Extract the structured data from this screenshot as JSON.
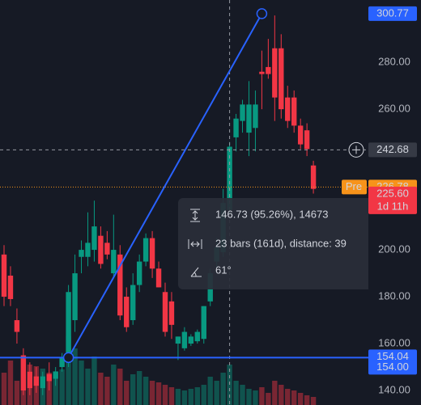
{
  "chart_data": {
    "type": "candlestick",
    "open": [
      198,
      189,
      170,
      155,
      148,
      146,
      141,
      147,
      145,
      150,
      154,
      170,
      197,
      197,
      200,
      206,
      203,
      190,
      198,
      180,
      170,
      185,
      195,
      205,
      192,
      182,
      178,
      160,
      158,
      160,
      161,
      162,
      178,
      195,
      199,
      217,
      248,
      255,
      250,
      252,
      276,
      278,
      286,
      286,
      265,
      265,
      253,
      251,
      236
    ],
    "high": [
      202,
      193,
      175,
      158,
      152,
      150,
      148,
      152,
      150,
      156,
      185,
      198,
      204,
      216,
      221,
      210,
      208,
      215,
      202,
      184,
      190,
      198,
      207,
      208,
      195,
      186,
      182,
      163,
      167,
      164,
      166,
      176,
      192,
      205,
      226,
      246,
      258,
      264,
      272,
      268,
      285,
      290,
      300,
      292,
      270,
      268,
      256,
      254,
      238
    ],
    "low": [
      176,
      176,
      160,
      138,
      138,
      139,
      138,
      140,
      142,
      148,
      150,
      165,
      190,
      193,
      195,
      192,
      196,
      188,
      170,
      165,
      168,
      182,
      193,
      188,
      184,
      163,
      162,
      153,
      157,
      159,
      160,
      160,
      176,
      192,
      197,
      215,
      242,
      250,
      240,
      242,
      260,
      273,
      255,
      256,
      252,
      250,
      243,
      240,
      224
    ],
    "close": [
      180,
      179,
      165,
      140,
      141,
      142,
      146,
      144,
      148,
      154,
      182,
      190,
      200,
      203,
      210,
      194,
      198,
      200,
      172,
      167,
      185,
      195,
      205,
      192,
      184,
      165,
      168,
      163,
      165,
      163,
      165,
      176,
      190,
      201,
      220,
      244,
      256,
      262,
      262,
      262,
      275,
      275,
      265,
      260,
      255,
      253,
      245,
      243,
      226
    ],
    "volume": [
      40,
      55,
      30,
      60,
      50,
      48,
      45,
      40,
      42,
      44,
      85,
      70,
      55,
      45,
      60,
      40,
      35,
      50,
      45,
      30,
      38,
      42,
      35,
      30,
      28,
      25,
      22,
      20,
      18,
      20,
      22,
      25,
      35,
      30,
      40,
      50,
      30,
      25,
      20,
      18,
      22,
      15,
      30,
      25,
      20,
      18,
      15,
      12,
      10
    ],
    "ylim": [
      133.8,
      306.6
    ],
    "yticks": [
      {
        "value": 140,
        "label": "140.00"
      },
      {
        "value": 160,
        "label": "160.00"
      },
      {
        "value": 180,
        "label": "180.00"
      },
      {
        "value": 200,
        "label": "200.00"
      },
      {
        "value": 260,
        "label": "260.00"
      },
      {
        "value": 280,
        "label": "280.00"
      }
    ],
    "up_color": "#089981",
    "down_color": "#f23645",
    "price_labels": [
      {
        "value": 300.77,
        "label": "300.77",
        "color": "#2962ff"
      },
      {
        "value": 242.68,
        "label": "242.68",
        "color": "#363a45"
      },
      {
        "value": 226.78,
        "label": "226.78",
        "color": "#f7931a",
        "tag": "Pre"
      },
      {
        "value": 225.6,
        "label": "225.60",
        "color": "#f23645",
        "countdown": "1d 11h"
      },
      {
        "value": 154.04,
        "label": "154.04",
        "color": "#2962ff"
      },
      {
        "value": 154,
        "label": "154.00",
        "color": "#2962ff"
      }
    ],
    "horizontal_line": 154.04,
    "trendline": {
      "start_index": 10,
      "start": 154.04,
      "end_index": 40,
      "end": 300.77
    },
    "crosshair": {
      "index": 35,
      "value": 242.68
    },
    "measure": [
      "146.73 (95.26%), 14673",
      "23 bars (161d), distance: 39",
      "61°"
    ]
  }
}
